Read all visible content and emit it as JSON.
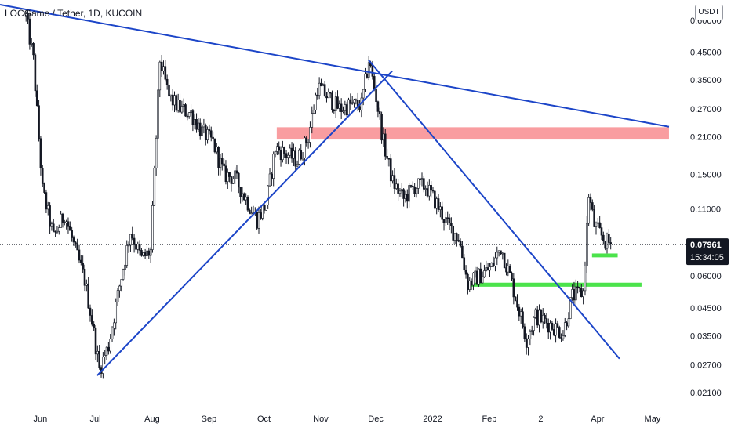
{
  "header": {
    "title": "LOCGame / Tether, 1D, KUCOIN",
    "currency_label": "USDT"
  },
  "chart_data": {
    "type": "candlestick",
    "title": "LOCGame / Tether, 1D, KUCOIN",
    "y_scale": "log",
    "ylim": [
      0.0185,
      0.72
    ],
    "y_ticks": [
      "0.60000",
      "0.45000",
      "0.35000",
      "0.27000",
      "0.21000",
      "0.15000",
      "0.11000",
      "0.06000",
      "0.04500",
      "0.03500",
      "0.02700",
      "0.02100"
    ],
    "x_ticks": [
      "Jun",
      "Jul",
      "Aug",
      "Sep",
      "Oct",
      "Nov",
      "Dec",
      "2022",
      "Feb",
      "2",
      "Apr",
      "May"
    ],
    "current_price": "0.07961",
    "countdown": "15:34:05",
    "price_path": [
      [
        "2021-05-24",
        0.62
      ],
      [
        "2021-05-28",
        0.42
      ],
      [
        "2021-06-02",
        0.13
      ],
      [
        "2021-06-08",
        0.085
      ],
      [
        "2021-06-14",
        0.105
      ],
      [
        "2021-06-20",
        0.075
      ],
      [
        "2021-06-25",
        0.058
      ],
      [
        "2021-06-29",
        0.04
      ],
      [
        "2021-07-03",
        0.026
      ],
      [
        "2021-07-08",
        0.032
      ],
      [
        "2021-07-14",
        0.055
      ],
      [
        "2021-07-20",
        0.09
      ],
      [
        "2021-07-26",
        0.07
      ],
      [
        "2021-07-31",
        0.075
      ],
      [
        "2021-08-05",
        0.42
      ],
      [
        "2021-08-10",
        0.3
      ],
      [
        "2021-08-16",
        0.27
      ],
      [
        "2021-08-22",
        0.26
      ],
      [
        "2021-08-28",
        0.22
      ],
      [
        "2021-09-03",
        0.2
      ],
      [
        "2021-09-09",
        0.15
      ],
      [
        "2021-09-15",
        0.145
      ],
      [
        "2021-09-21",
        0.12
      ],
      [
        "2021-09-27",
        0.1
      ],
      [
        "2021-10-02",
        0.115
      ],
      [
        "2021-10-07",
        0.19
      ],
      [
        "2021-10-13",
        0.18
      ],
      [
        "2021-10-19",
        0.17
      ],
      [
        "2021-10-25",
        0.21
      ],
      [
        "2021-10-30",
        0.33
      ],
      [
        "2021-11-05",
        0.3
      ],
      [
        "2021-11-11",
        0.27
      ],
      [
        "2021-11-17",
        0.28
      ],
      [
        "2021-11-23",
        0.28
      ],
      [
        "2021-11-27",
        0.42
      ],
      [
        "2021-12-01",
        0.3
      ],
      [
        "2021-12-05",
        0.2
      ],
      [
        "2021-12-10",
        0.14
      ],
      [
        "2021-12-16",
        0.12
      ],
      [
        "2021-12-22",
        0.135
      ],
      [
        "2021-12-28",
        0.135
      ],
      [
        "2022-01-03",
        0.115
      ],
      [
        "2022-01-09",
        0.095
      ],
      [
        "2022-01-15",
        0.085
      ],
      [
        "2022-01-20",
        0.056
      ],
      [
        "2022-01-26",
        0.06
      ],
      [
        "2022-02-02",
        0.065
      ],
      [
        "2022-02-07",
        0.078
      ],
      [
        "2022-02-12",
        0.06
      ],
      [
        "2022-02-17",
        0.044
      ],
      [
        "2022-02-21",
        0.034
      ],
      [
        "2022-02-26",
        0.042
      ],
      [
        "2022-03-03",
        0.04
      ],
      [
        "2022-03-08",
        0.038
      ],
      [
        "2022-03-13",
        0.036
      ],
      [
        "2022-03-18",
        0.05
      ],
      [
        "2022-03-24",
        0.052
      ],
      [
        "2022-03-27",
        0.125
      ],
      [
        "2022-03-30",
        0.095
      ],
      [
        "2022-04-05",
        0.082
      ],
      [
        "2022-04-09",
        0.0796
      ]
    ],
    "zones": [
      {
        "name": "resistance-zone",
        "color": "#f77c80",
        "opacity": 0.75,
        "y_low": 0.205,
        "y_high": 0.229,
        "x_start": "2021-10-08",
        "x_end": "2022-05-10"
      },
      {
        "name": "support-zone",
        "color": "#4be34b",
        "opacity": 1,
        "y_low": 0.0545,
        "y_high": 0.0565,
        "x_start": "2022-01-20",
        "x_end": "2022-04-25"
      },
      {
        "name": "small-support-zone",
        "color": "#4be34b",
        "opacity": 1,
        "y_low": 0.071,
        "y_high": 0.0735,
        "x_start": "2022-03-29",
        "x_end": "2022-04-12"
      }
    ],
    "trendlines": [
      {
        "name": "descending-resistance-line",
        "x1": "2021-05-10",
        "y1": 0.69,
        "x2": "2022-05-10",
        "y2": 0.23
      },
      {
        "name": "rising-support-line",
        "x1": "2021-07-02",
        "y1": 0.0245,
        "x2": "2021-12-10",
        "y2": 0.38
      },
      {
        "name": "falling-trendline",
        "x1": "2021-11-27",
        "y1": 0.42,
        "x2": "2022-04-13",
        "y2": 0.0285
      }
    ],
    "colors": {
      "up": "#131722",
      "down": "#131722",
      "trendline": "#1c45c8",
      "price_tag": "#131722",
      "dotted_line": "#131722"
    }
  }
}
